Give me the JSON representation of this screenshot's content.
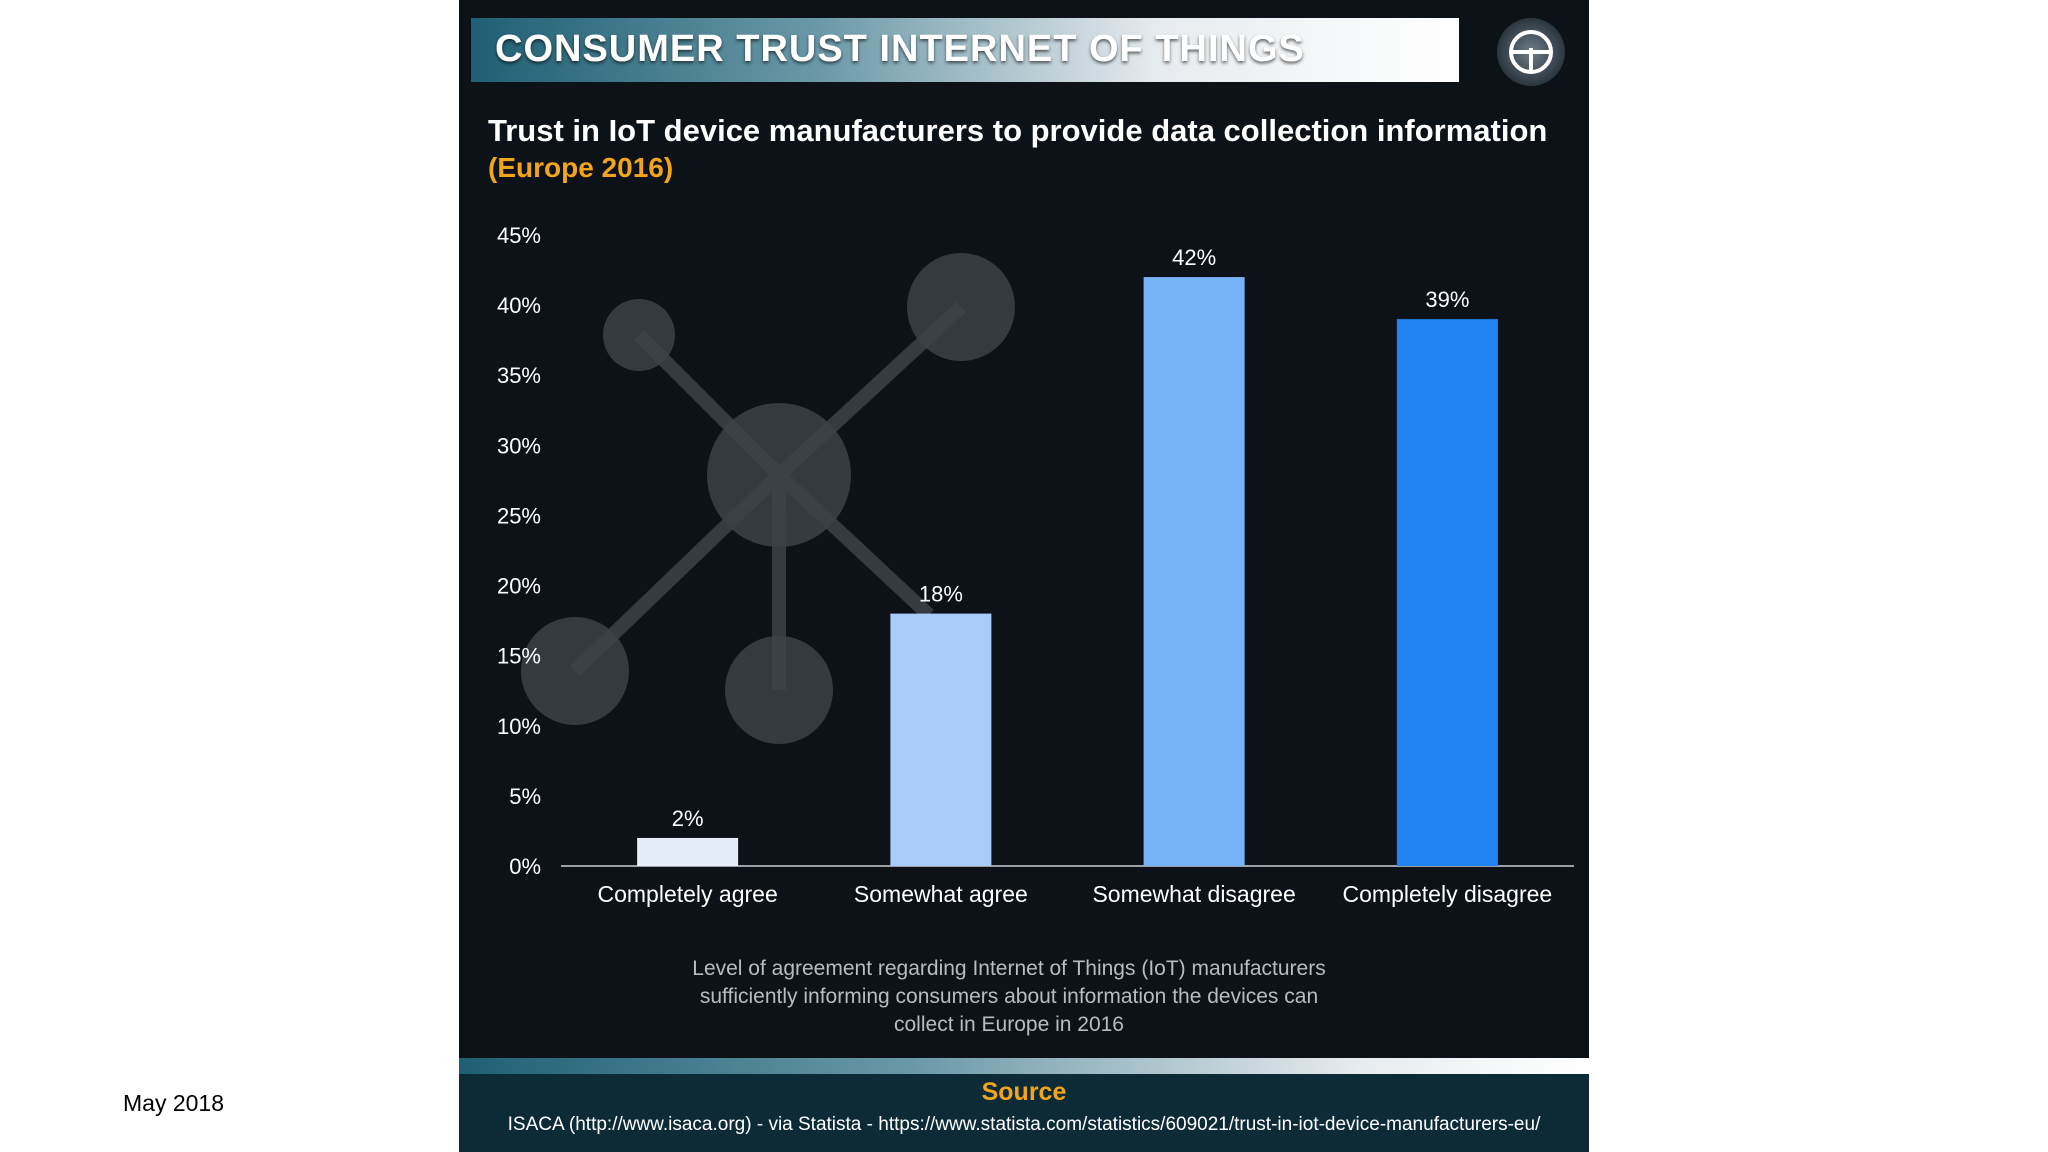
{
  "slide": {
    "date": "May 2018"
  },
  "header": {
    "title": "CONSUMER TRUST INTERNET OF THINGS"
  },
  "chart_data": {
    "type": "bar",
    "title": "Trust in IoT device manufacturers to provide data collection information",
    "subtitle": "(Europe 2016)",
    "categories": [
      "Completely agree",
      "Somewhat agree",
      "Somewhat disagree",
      "Completely disagree"
    ],
    "values": [
      2,
      18,
      42,
      39
    ],
    "value_labels": [
      "2%",
      "18%",
      "42%",
      "39%"
    ],
    "colors": [
      "#e4edf9",
      "#a9ccf8",
      "#76b2f6",
      "#2183f2"
    ],
    "ylim": [
      0,
      45
    ],
    "yticks": [
      0,
      5,
      10,
      15,
      20,
      25,
      30,
      35,
      40,
      45
    ],
    "ytick_labels": [
      "0%",
      "5%",
      "10%",
      "15%",
      "20%",
      "25%",
      "30%",
      "35%",
      "40%",
      "45%"
    ],
    "xlabel": "",
    "ylabel": "",
    "grid": false,
    "caption_lines": [
      "Level of agreement regarding Internet of Things (IoT) manufacturers",
      "sufficiently informing consumers about information the devices can",
      "collect in Europe in 2016"
    ]
  },
  "source": {
    "label": "Source",
    "text": "ISACA (http://www.isaca.org) - via Statista - https://www.statista.com/statistics/609021/trust-in-iot-device-manufacturers-eu/"
  }
}
